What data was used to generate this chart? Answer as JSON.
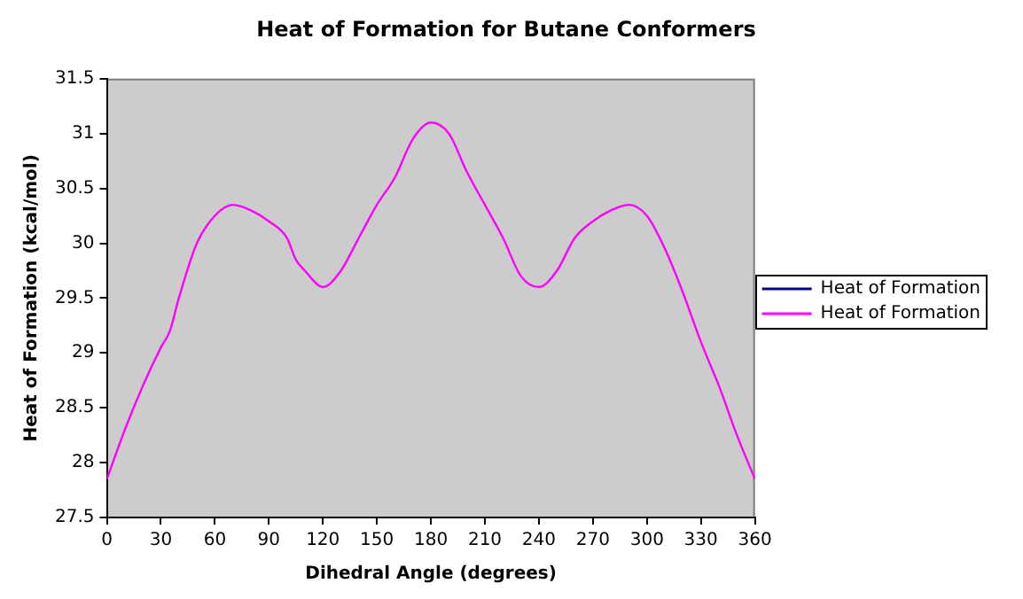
{
  "chart_data": {
    "type": "line",
    "title": "Heat of Formation for Butane Conformers",
    "xlabel": "Dihedral Angle (degrees)",
    "ylabel": "Heat of Formation (kcal/mol)",
    "x": [
      0,
      10,
      20,
      30,
      35,
      40,
      50,
      60,
      70,
      80,
      90,
      100,
      105,
      110,
      120,
      130,
      140,
      150,
      160,
      170,
      180,
      190,
      200,
      210,
      220,
      230,
      240,
      250,
      260,
      270,
      280,
      290,
      300,
      310,
      320,
      330,
      340,
      350,
      360
    ],
    "series": [
      {
        "name": "Heat of Formation",
        "color": "#000080",
        "values": [
          null,
          null,
          null,
          null,
          null,
          null,
          null,
          null,
          null,
          null,
          null,
          null,
          null,
          null,
          null,
          null,
          null,
          null,
          null,
          null,
          null,
          null,
          null,
          null,
          null,
          null,
          null,
          null,
          null,
          null,
          null,
          null,
          null,
          null,
          null,
          null,
          null,
          null,
          null
        ]
      },
      {
        "name": "Heat of Formation",
        "color": "#ff00ff",
        "values": [
          27.85,
          28.3,
          28.7,
          29.05,
          29.2,
          29.5,
          30.0,
          30.25,
          30.35,
          30.3,
          30.2,
          30.05,
          29.85,
          29.75,
          29.6,
          29.75,
          30.05,
          30.35,
          30.6,
          30.95,
          31.1,
          31.0,
          30.65,
          30.35,
          30.05,
          29.7,
          29.6,
          29.75,
          30.05,
          30.2,
          30.3,
          30.35,
          30.25,
          29.95,
          29.55,
          29.1,
          28.7,
          28.25,
          27.85
        ]
      }
    ],
    "xlim": [
      0,
      360
    ],
    "xticks": [
      0,
      30,
      60,
      90,
      120,
      150,
      180,
      210,
      240,
      270,
      300,
      330,
      360
    ],
    "ylim": [
      27.5,
      31.5
    ],
    "yticks": [
      27.5,
      28,
      28.5,
      29,
      29.5,
      30,
      30.5,
      31,
      31.5
    ],
    "grid": false,
    "legend": "right",
    "marker": "none",
    "line_style": "solid"
  }
}
